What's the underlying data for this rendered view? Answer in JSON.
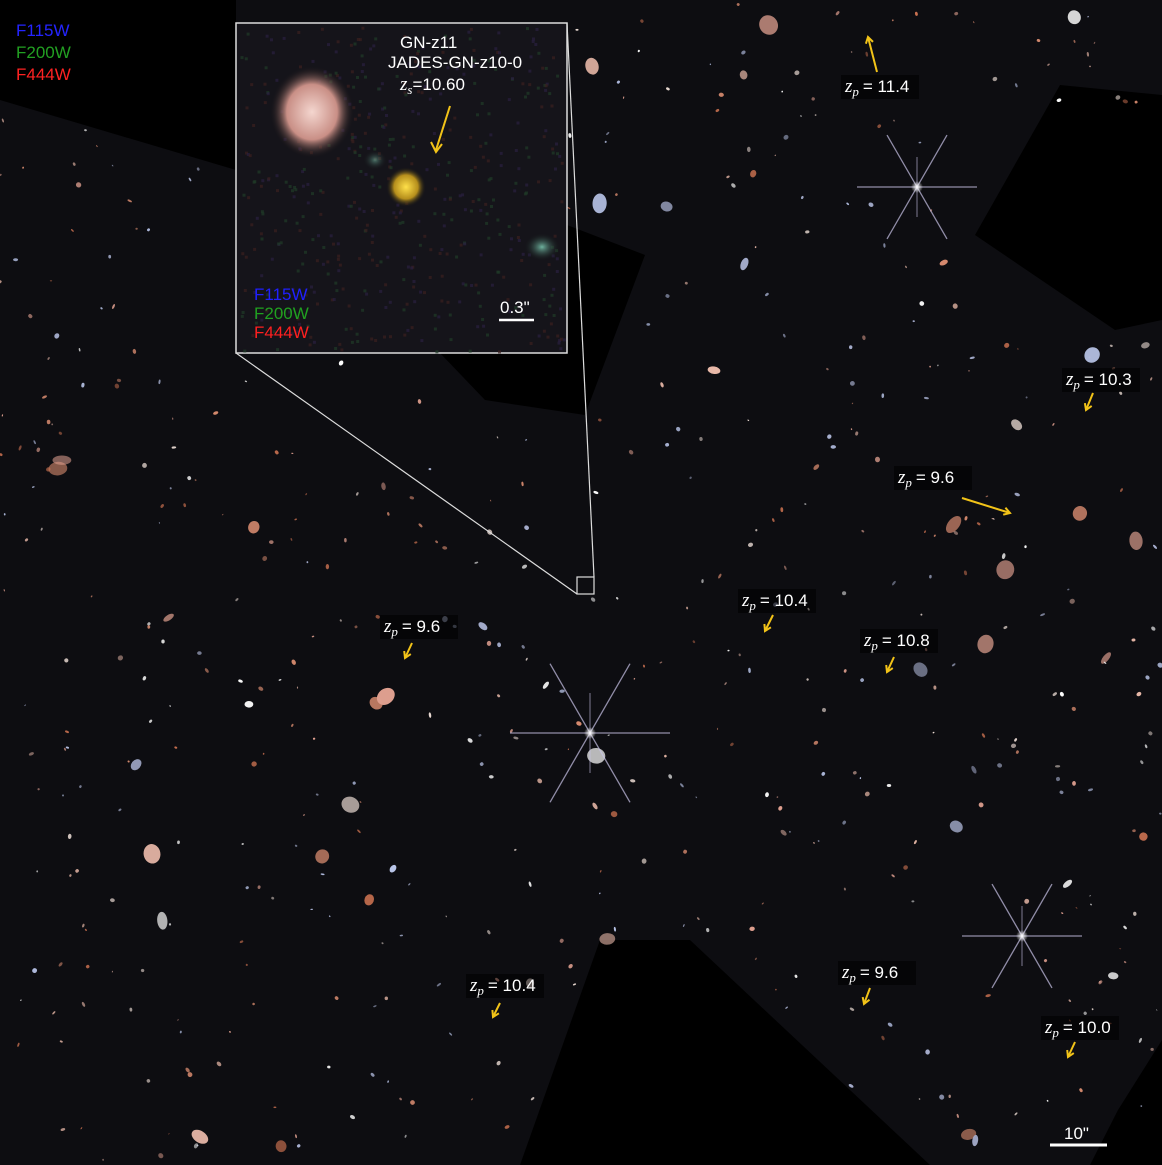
{
  "filter_legend": [
    "F115W",
    "F200W",
    "F444W"
  ],
  "inset": {
    "name": "GN-z11",
    "id": "JADES-GN-z10-0",
    "redshift": {
      "symbol": "z",
      "sub": "s",
      "text": "=10.60"
    },
    "filter_legend": [
      "F115W",
      "F200W",
      "F444W"
    ],
    "scale_bar": "0.3\""
  },
  "annotations": [
    {
      "symbol": "z",
      "sub": "p",
      "text": "= 11.4"
    },
    {
      "symbol": "z",
      "sub": "p",
      "text": "= 10.3"
    },
    {
      "symbol": "z",
      "sub": "p",
      "text": "= 9.6"
    },
    {
      "symbol": "z",
      "sub": "p",
      "text": "= 10.4"
    },
    {
      "symbol": "z",
      "sub": "p",
      "text": "= 10.8"
    },
    {
      "symbol": "z",
      "sub": "p",
      "text": "= 9.6"
    },
    {
      "symbol": "z",
      "sub": "p",
      "text": "= 10.4"
    },
    {
      "symbol": "z",
      "sub": "p",
      "text": "= 9.6"
    },
    {
      "symbol": "z",
      "sub": "p",
      "text": "= 10.0"
    }
  ],
  "scale_bar": "10\""
}
